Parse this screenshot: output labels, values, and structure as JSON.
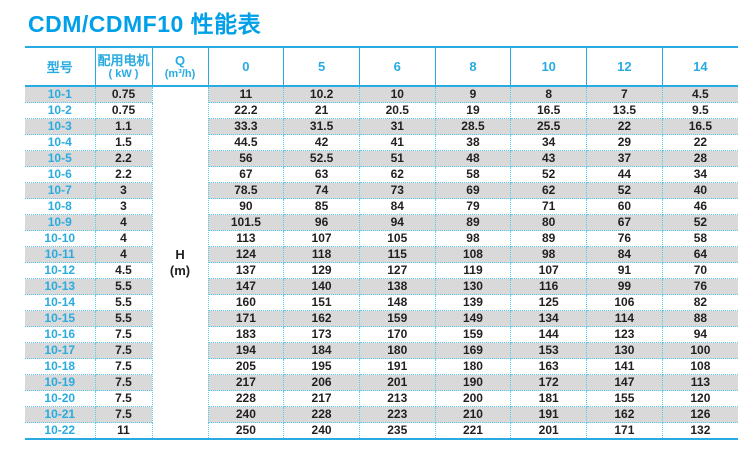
{
  "page": {
    "title": "CDM/CDMF10 性能表"
  },
  "chart_data": {
    "type": "table",
    "title": "CDM/CDMF10 性能表",
    "col_headers": {
      "model": "型号",
      "motor_line1": "配用电机",
      "motor_line2": "( kW )",
      "q_line1": "Q",
      "q_line2": "(m³/h)"
    },
    "flow_columns_m3h": [
      0,
      5,
      6,
      8,
      10,
      12,
      14
    ],
    "value_label": {
      "line1": "H",
      "line2": "(m)"
    },
    "rows": [
      {
        "model": "10-1",
        "motor_kw": "0.75",
        "head_m": [
          "11",
          "10.2",
          "10",
          "9",
          "8",
          "7",
          "4.5"
        ]
      },
      {
        "model": "10-2",
        "motor_kw": "0.75",
        "head_m": [
          "22.2",
          "21",
          "20.5",
          "19",
          "16.5",
          "13.5",
          "9.5"
        ]
      },
      {
        "model": "10-3",
        "motor_kw": "1.1",
        "head_m": [
          "33.3",
          "31.5",
          "31",
          "28.5",
          "25.5",
          "22",
          "16.5"
        ]
      },
      {
        "model": "10-4",
        "motor_kw": "1.5",
        "head_m": [
          "44.5",
          "42",
          "41",
          "38",
          "34",
          "29",
          "22"
        ]
      },
      {
        "model": "10-5",
        "motor_kw": "2.2",
        "head_m": [
          "56",
          "52.5",
          "51",
          "48",
          "43",
          "37",
          "28"
        ]
      },
      {
        "model": "10-6",
        "motor_kw": "2.2",
        "head_m": [
          "67",
          "63",
          "62",
          "58",
          "52",
          "44",
          "34"
        ]
      },
      {
        "model": "10-7",
        "motor_kw": "3",
        "head_m": [
          "78.5",
          "74",
          "73",
          "69",
          "62",
          "52",
          "40"
        ]
      },
      {
        "model": "10-8",
        "motor_kw": "3",
        "head_m": [
          "90",
          "85",
          "84",
          "79",
          "71",
          "60",
          "46"
        ]
      },
      {
        "model": "10-9",
        "motor_kw": "4",
        "head_m": [
          "101.5",
          "96",
          "94",
          "89",
          "80",
          "67",
          "52"
        ]
      },
      {
        "model": "10-10",
        "motor_kw": "4",
        "head_m": [
          "113",
          "107",
          "105",
          "98",
          "89",
          "76",
          "58"
        ]
      },
      {
        "model": "10-11",
        "motor_kw": "4",
        "head_m": [
          "124",
          "118",
          "115",
          "108",
          "98",
          "84",
          "64"
        ]
      },
      {
        "model": "10-12",
        "motor_kw": "4.5",
        "head_m": [
          "137",
          "129",
          "127",
          "119",
          "107",
          "91",
          "70"
        ]
      },
      {
        "model": "10-13",
        "motor_kw": "5.5",
        "head_m": [
          "147",
          "140",
          "138",
          "130",
          "116",
          "99",
          "76"
        ]
      },
      {
        "model": "10-14",
        "motor_kw": "5.5",
        "head_m": [
          "160",
          "151",
          "148",
          "139",
          "125",
          "106",
          "82"
        ]
      },
      {
        "model": "10-15",
        "motor_kw": "5.5",
        "head_m": [
          "171",
          "162",
          "159",
          "149",
          "134",
          "114",
          "88"
        ]
      },
      {
        "model": "10-16",
        "motor_kw": "7.5",
        "head_m": [
          "183",
          "173",
          "170",
          "159",
          "144",
          "123",
          "94"
        ]
      },
      {
        "model": "10-17",
        "motor_kw": "7.5",
        "head_m": [
          "194",
          "184",
          "180",
          "169",
          "153",
          "130",
          "100"
        ]
      },
      {
        "model": "10-18",
        "motor_kw": "7.5",
        "head_m": [
          "205",
          "195",
          "191",
          "180",
          "163",
          "141",
          "108"
        ]
      },
      {
        "model": "10-19",
        "motor_kw": "7.5",
        "head_m": [
          "217",
          "206",
          "201",
          "190",
          "172",
          "147",
          "113"
        ]
      },
      {
        "model": "10-20",
        "motor_kw": "7.5",
        "head_m": [
          "228",
          "217",
          "213",
          "200",
          "181",
          "155",
          "120"
        ]
      },
      {
        "model": "10-21",
        "motor_kw": "7.5",
        "head_m": [
          "240",
          "228",
          "223",
          "210",
          "191",
          "162",
          "126"
        ]
      },
      {
        "model": "10-22",
        "motor_kw": "11",
        "head_m": [
          "250",
          "240",
          "235",
          "221",
          "201",
          "171",
          "132"
        ]
      }
    ]
  },
  "colors": {
    "title_accent": "#00a0e9",
    "line_accent": "#29abe2",
    "dotted_border": "#5ec8f0",
    "row_shade": "#d9d9d9",
    "data_text": "#231f20"
  }
}
